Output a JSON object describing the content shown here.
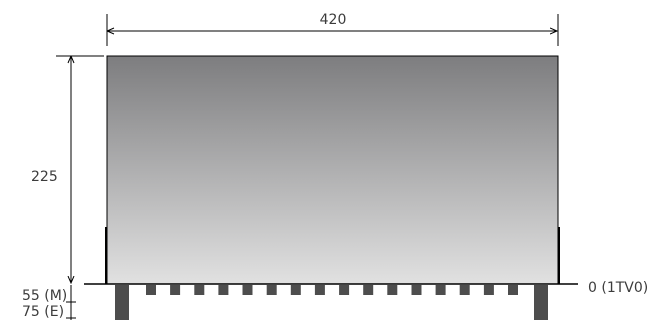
{
  "dimensions": {
    "width_label": "420",
    "height_label": "225",
    "depth_m_label": "55 (M)",
    "depth_e_label": "75 (E)",
    "baseline_label": "0 (1TV0)"
  },
  "colors": {
    "panel_top": "#7d7d7f",
    "panel_bottom": "#e1e1e1",
    "foot": "#4d4d4d",
    "line": "#000000",
    "text": "#3c3c3c"
  },
  "feet": {
    "small_count": 16
  }
}
